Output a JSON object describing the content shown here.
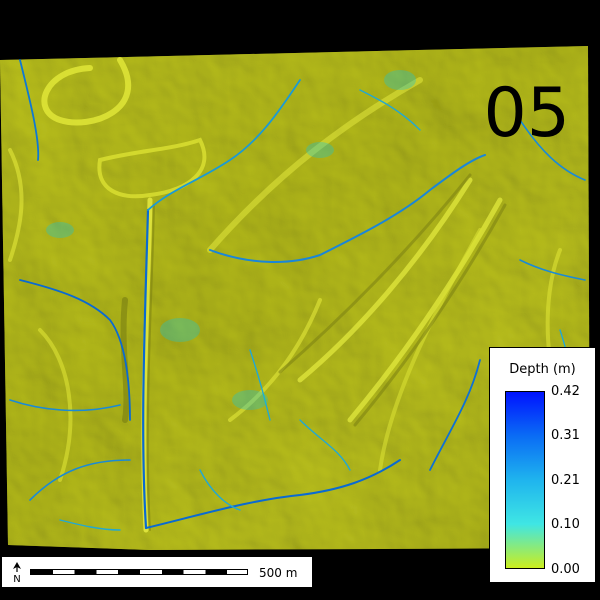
{
  "map": {
    "frame_label": "05",
    "colors": {
      "terrain_light": "#d2d82a",
      "terrain_mid": "#b9bf1d",
      "terrain_dark": "#8f9414",
      "water_shallow": "#19c6d2",
      "water_deep": "#0a5fd0",
      "border": "#000000"
    }
  },
  "scale_bar": {
    "distance_label": "500 m",
    "north_symbol": "N",
    "north_icon": "north-arrow-icon"
  },
  "legend": {
    "title": "Depth (m)",
    "ticks": [
      "0.42",
      "0.31",
      "0.21",
      "0.10",
      "0.00"
    ],
    "min": 0.0,
    "max": 0.42,
    "ramp_colors": [
      "#0013ff",
      "#0a6cf5",
      "#1fb4ee",
      "#3fe6e4",
      "#ccee1e"
    ]
  }
}
